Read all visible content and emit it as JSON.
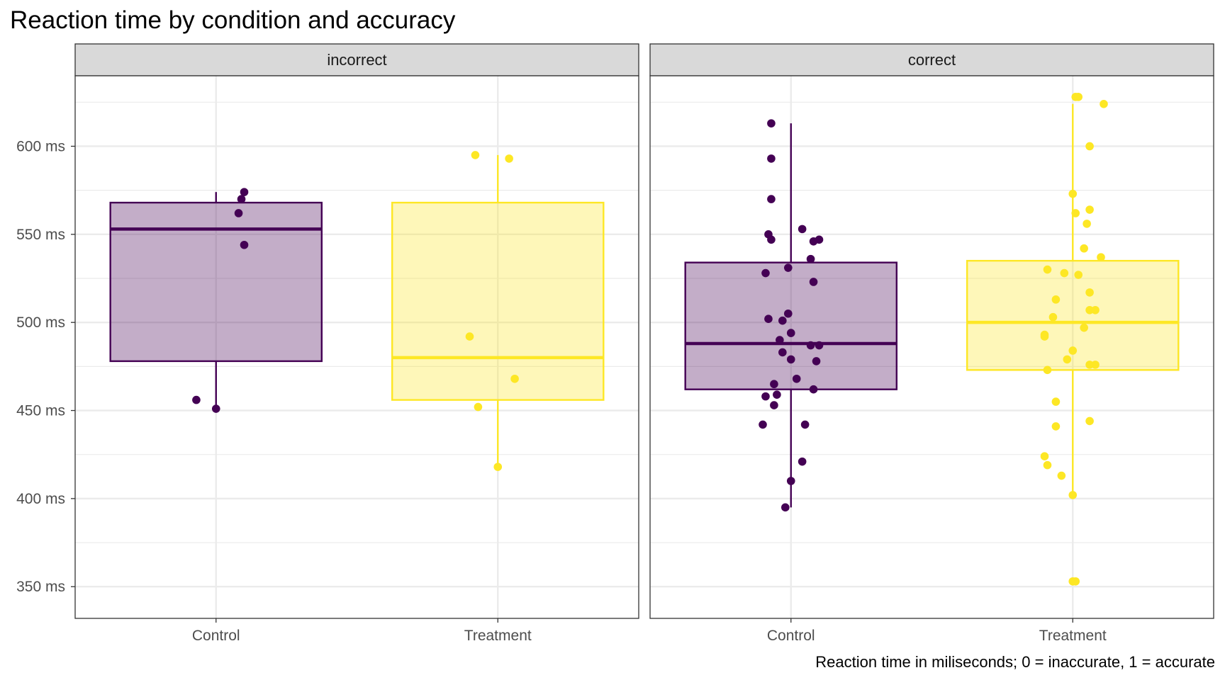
{
  "chart_data": {
    "type": "boxplot",
    "title": "Reaction time by condition and accuracy",
    "caption": "Reaction time in miliseconds; 0 = inaccurate, 1 = accurate",
    "xlabel": "",
    "ylabel": "",
    "ylim": [
      332,
      640
    ],
    "y_ticks": [
      350,
      400,
      450,
      500,
      550,
      600
    ],
    "y_tick_labels": [
      "350 ms",
      "400 ms",
      "450 ms",
      "500 ms",
      "550 ms",
      "600 ms"
    ],
    "categories": [
      "Control",
      "Treatment"
    ],
    "grid": true,
    "legend": "none",
    "colors": {
      "Control": "#440154",
      "Treatment": "#FDE725",
      "strip_fill": "#D9D9D9",
      "grid": "#EBEBEB",
      "panel_border": "#333333"
    },
    "panels": [
      {
        "facet": "incorrect",
        "boxes": [
          {
            "group": "Control",
            "stats": {
              "whisker_low": 451,
              "q1": 478,
              "median": 553,
              "q3": 568,
              "whisker_high": 574
            },
            "points": [
              {
                "x": -0.07,
                "y": 456
              },
              {
                "x": 0.0,
                "y": 451
              },
              {
                "x": 0.08,
                "y": 562
              },
              {
                "x": 0.09,
                "y": 570
              },
              {
                "x": 0.1,
                "y": 574
              },
              {
                "x": 0.1,
                "y": 544
              }
            ]
          },
          {
            "group": "Treatment",
            "stats": {
              "whisker_low": 418,
              "q1": 456,
              "median": 480,
              "q3": 568,
              "whisker_high": 595
            },
            "points": [
              {
                "x": -0.08,
                "y": 595
              },
              {
                "x": 0.04,
                "y": 593
              },
              {
                "x": -0.1,
                "y": 492
              },
              {
                "x": 0.06,
                "y": 468
              },
              {
                "x": -0.07,
                "y": 452
              },
              {
                "x": 0.0,
                "y": 418
              }
            ]
          }
        ]
      },
      {
        "facet": "correct",
        "boxes": [
          {
            "group": "Control",
            "stats": {
              "whisker_low": 395,
              "q1": 462,
              "median": 488,
              "q3": 534,
              "whisker_high": 613
            },
            "points": [
              {
                "x": -0.07,
                "y": 613
              },
              {
                "x": -0.07,
                "y": 593
              },
              {
                "x": -0.07,
                "y": 570
              },
              {
                "x": -0.08,
                "y": 550
              },
              {
                "x": -0.07,
                "y": 547
              },
              {
                "x": 0.04,
                "y": 553
              },
              {
                "x": 0.08,
                "y": 546
              },
              {
                "x": 0.1,
                "y": 547
              },
              {
                "x": -0.09,
                "y": 528
              },
              {
                "x": -0.01,
                "y": 531
              },
              {
                "x": 0.07,
                "y": 536
              },
              {
                "x": 0.08,
                "y": 523
              },
              {
                "x": -0.08,
                "y": 502
              },
              {
                "x": -0.03,
                "y": 501
              },
              {
                "x": -0.01,
                "y": 505
              },
              {
                "x": -0.04,
                "y": 490
              },
              {
                "x": 0.0,
                "y": 494
              },
              {
                "x": 0.07,
                "y": 487
              },
              {
                "x": 0.1,
                "y": 487
              },
              {
                "x": -0.03,
                "y": 483
              },
              {
                "x": 0.0,
                "y": 479
              },
              {
                "x": 0.09,
                "y": 478
              },
              {
                "x": 0.02,
                "y": 468
              },
              {
                "x": -0.06,
                "y": 465
              },
              {
                "x": 0.08,
                "y": 462
              },
              {
                "x": -0.09,
                "y": 458
              },
              {
                "x": -0.05,
                "y": 459
              },
              {
                "x": -0.06,
                "y": 453
              },
              {
                "x": -0.1,
                "y": 442
              },
              {
                "x": 0.05,
                "y": 442
              },
              {
                "x": 0.04,
                "y": 421
              },
              {
                "x": 0.0,
                "y": 410
              },
              {
                "x": -0.02,
                "y": 395
              }
            ]
          },
          {
            "group": "Treatment",
            "stats": {
              "whisker_low": 402,
              "q1": 473,
              "median": 500,
              "q3": 535,
              "whisker_high": 624
            },
            "points": [
              {
                "x": 0.01,
                "y": 628
              },
              {
                "x": 0.02,
                "y": 628
              },
              {
                "x": 0.11,
                "y": 624
              },
              {
                "x": 0.06,
                "y": 600
              },
              {
                "x": 0.0,
                "y": 573
              },
              {
                "x": 0.06,
                "y": 564
              },
              {
                "x": 0.01,
                "y": 562
              },
              {
                "x": 0.05,
                "y": 556
              },
              {
                "x": 0.04,
                "y": 542
              },
              {
                "x": 0.1,
                "y": 537
              },
              {
                "x": -0.09,
                "y": 530
              },
              {
                "x": -0.03,
                "y": 528
              },
              {
                "x": 0.02,
                "y": 527
              },
              {
                "x": 0.06,
                "y": 517
              },
              {
                "x": -0.06,
                "y": 513
              },
              {
                "x": 0.06,
                "y": 507
              },
              {
                "x": 0.08,
                "y": 507
              },
              {
                "x": -0.07,
                "y": 503
              },
              {
                "x": 0.04,
                "y": 497
              },
              {
                "x": -0.1,
                "y": 493
              },
              {
                "x": -0.1,
                "y": 492
              },
              {
                "x": 0.0,
                "y": 484
              },
              {
                "x": -0.02,
                "y": 479
              },
              {
                "x": 0.08,
                "y": 476
              },
              {
                "x": 0.06,
                "y": 476
              },
              {
                "x": -0.09,
                "y": 473
              },
              {
                "x": -0.06,
                "y": 455
              },
              {
                "x": 0.06,
                "y": 444
              },
              {
                "x": -0.06,
                "y": 441
              },
              {
                "x": -0.1,
                "y": 424
              },
              {
                "x": -0.09,
                "y": 419
              },
              {
                "x": -0.04,
                "y": 413
              },
              {
                "x": 0.0,
                "y": 402
              },
              {
                "x": 0.0,
                "y": 353
              },
              {
                "x": 0.01,
                "y": 353
              }
            ]
          }
        ]
      }
    ]
  }
}
